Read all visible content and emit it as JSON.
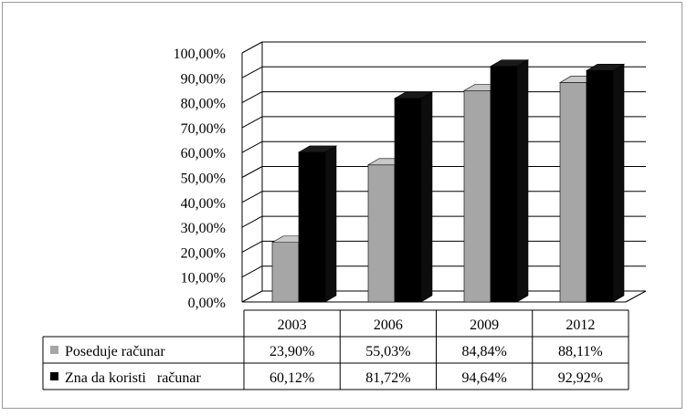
{
  "chart_data": {
    "type": "bar",
    "title": "",
    "xlabel": "",
    "ylabel": "",
    "ylim": [
      0,
      100
    ],
    "yticks": [
      "0,00%",
      "10,00%",
      "20,00%",
      "30,00%",
      "40,00%",
      "50,00%",
      "60,00%",
      "70,00%",
      "80,00%",
      "90,00%",
      "100,00%"
    ],
    "categories": [
      "2003",
      "2006",
      "2009",
      "2012"
    ],
    "series": [
      {
        "name": "Poseduje računar",
        "color": "#a6a6a6",
        "values": [
          23.9,
          55.03,
          84.84,
          88.11
        ],
        "labels": [
          "23,90%",
          "55,03%",
          "84,84%",
          "88,11%"
        ]
      },
      {
        "name": "Zna da koristi   računar",
        "color": "#000000",
        "values": [
          60.12,
          81.72,
          94.64,
          92.92
        ],
        "labels": [
          "60,12%",
          "81,72%",
          "94,64%",
          "92,92%"
        ]
      }
    ],
    "grid": true,
    "data_table": true,
    "style": "3d-clustered-column"
  }
}
